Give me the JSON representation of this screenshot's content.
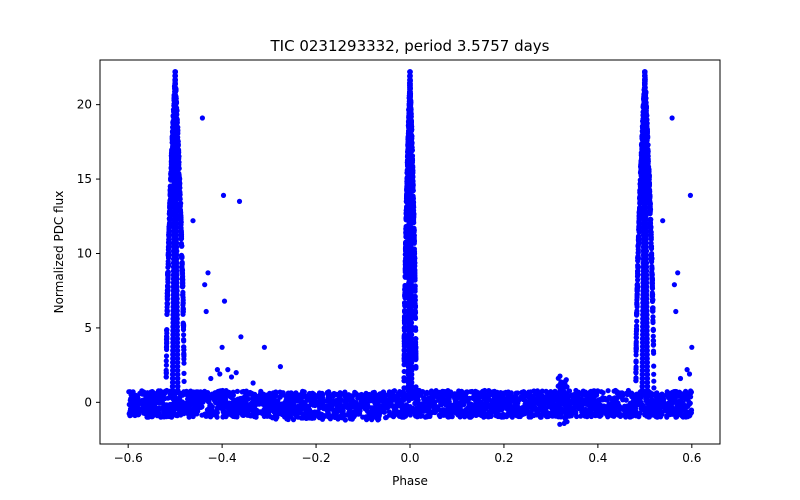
{
  "chart_data": {
    "type": "scatter",
    "title": "TIC 0231293332, period 3.5757 days",
    "xlabel": "Phase",
    "ylabel": "Normalized PDC flux",
    "xlim": [
      -0.66,
      0.66
    ],
    "ylim": [
      -2.8,
      23.0
    ],
    "grid": false,
    "marker_color": "#0000ff",
    "x_ticks": [
      -0.6,
      -0.4,
      -0.2,
      0.0,
      0.2,
      0.4,
      0.6
    ],
    "x_tick_labels": [
      "−0.6",
      "−0.4",
      "−0.2",
      "0.0",
      "0.2",
      "0.4",
      "0.6"
    ],
    "y_ticks": [
      0,
      5,
      10,
      15,
      20
    ],
    "y_tick_labels": [
      "0",
      "5",
      "10",
      "15",
      "20"
    ],
    "phase_range": [
      -0.6,
      0.6
    ],
    "baseline_band": {
      "low": -1.0,
      "high": 0.8
    },
    "flares": [
      {
        "center": -0.5,
        "peak": 22.2,
        "width": 0.012
      },
      {
        "center": 0.0,
        "peak": 22.2,
        "width": 0.008
      },
      {
        "center": 0.5,
        "peak": 22.2,
        "width": 0.012
      }
    ],
    "dip": {
      "center": 0.325,
      "low": -1.6,
      "high": 1.8
    },
    "outliers": [
      {
        "x": -0.442,
        "y": 19.1
      },
      {
        "x": -0.462,
        "y": 12.2
      },
      {
        "x": -0.397,
        "y": 13.9
      },
      {
        "x": -0.363,
        "y": 13.5
      },
      {
        "x": -0.43,
        "y": 8.7
      },
      {
        "x": -0.437,
        "y": 7.9
      },
      {
        "x": -0.395,
        "y": 6.8
      },
      {
        "x": -0.434,
        "y": 6.1
      },
      {
        "x": -0.36,
        "y": 4.4
      },
      {
        "x": -0.4,
        "y": 3.7
      },
      {
        "x": -0.31,
        "y": 3.7
      },
      {
        "x": -0.276,
        "y": 2.4
      },
      {
        "x": -0.41,
        "y": 2.2
      },
      {
        "x": -0.388,
        "y": 2.2
      },
      {
        "x": -0.37,
        "y": 2.0
      },
      {
        "x": -0.405,
        "y": 1.9
      },
      {
        "x": -0.424,
        "y": 1.6
      },
      {
        "x": -0.38,
        "y": 1.7
      },
      {
        "x": -0.334,
        "y": 1.3
      },
      {
        "x": 0.558,
        "y": 19.1
      },
      {
        "x": 0.538,
        "y": 12.2
      },
      {
        "x": 0.597,
        "y": 13.9
      },
      {
        "x": 0.57,
        "y": 8.7
      },
      {
        "x": 0.563,
        "y": 7.9
      },
      {
        "x": 0.566,
        "y": 6.1
      },
      {
        "x": 0.6,
        "y": 3.7
      },
      {
        "x": 0.59,
        "y": 2.2
      },
      {
        "x": 0.595,
        "y": 1.9
      },
      {
        "x": 0.576,
        "y": 1.6
      }
    ]
  }
}
